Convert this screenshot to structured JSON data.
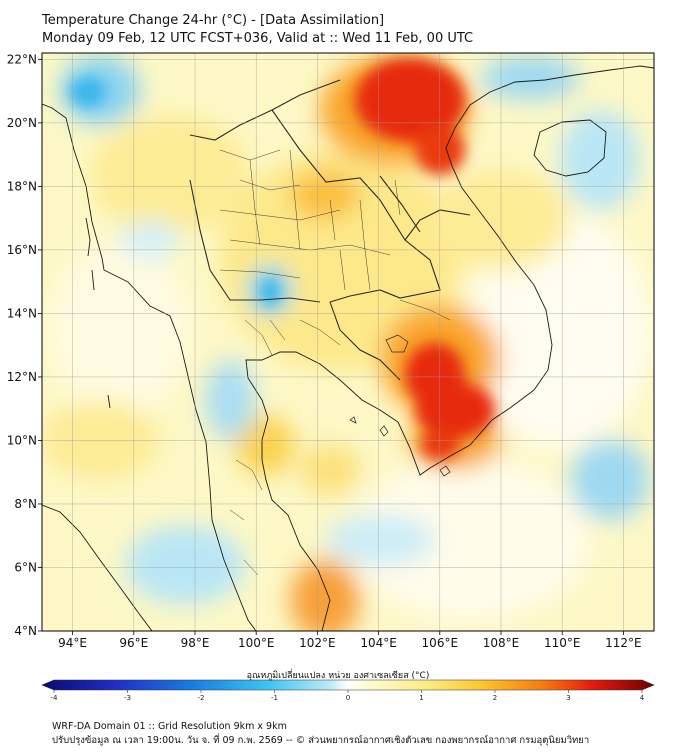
{
  "header": {
    "title_line1": "Temperature Change 24-hr (°C) - [Data Assimilation]",
    "title_line2": "Monday 09 Feb, 12 UTC FCST+036, Valid at :: Wed 11 Feb, 00 UTC"
  },
  "map": {
    "lat_labels": [
      "4°N",
      "6°N",
      "8°N",
      "10°N",
      "12°N",
      "14°N",
      "16°N",
      "18°N",
      "20°N",
      "22°N"
    ],
    "lon_labels": [
      "94°E",
      "96°E",
      "98°E",
      "100°E",
      "102°E",
      "104°E",
      "106°E",
      "108°E",
      "110°E",
      "112°E"
    ],
    "lat_values": [
      4,
      6,
      8,
      10,
      12,
      14,
      16,
      18,
      20,
      22
    ],
    "lon_values": [
      94,
      96,
      98,
      100,
      102,
      104,
      106,
      108,
      110,
      112
    ],
    "extent": {
      "lon_min": 93,
      "lon_max": 113,
      "lat_min": 4,
      "lat_max": 22.2
    },
    "colors": {
      "frame": "#000000",
      "grid": "#9e9e9e",
      "coast": "#1a1a1a",
      "border": "#333333",
      "base": "#fdf8c6"
    }
  },
  "colorbar": {
    "label": "อุณหภูมิเปลี่ยนแปลง หน่วย องศาเซลเซียส (°C)",
    "tick_labels": [
      "-4",
      "-3",
      "-2",
      "-1",
      "0",
      "1",
      "2",
      "3",
      "4"
    ],
    "tick_values": [
      -4,
      -3,
      -2,
      -1,
      0,
      1,
      2,
      3,
      4
    ],
    "min": -4,
    "max": 4
  },
  "footer": {
    "line1": "WRF-DA Domain 01 :: Grid Resolution 9km x 9km",
    "line2": "ปรับปรุงข้อมูล ณ เวลา 19:00น. วัน จ. ที่ 09 ก.พ. 2569 -- © ส่วนพยากรณ์อากาศเชิงตัวเลข กองพยากรณ์อากาศ กรมอุตุนิยมวิทยา"
  }
}
